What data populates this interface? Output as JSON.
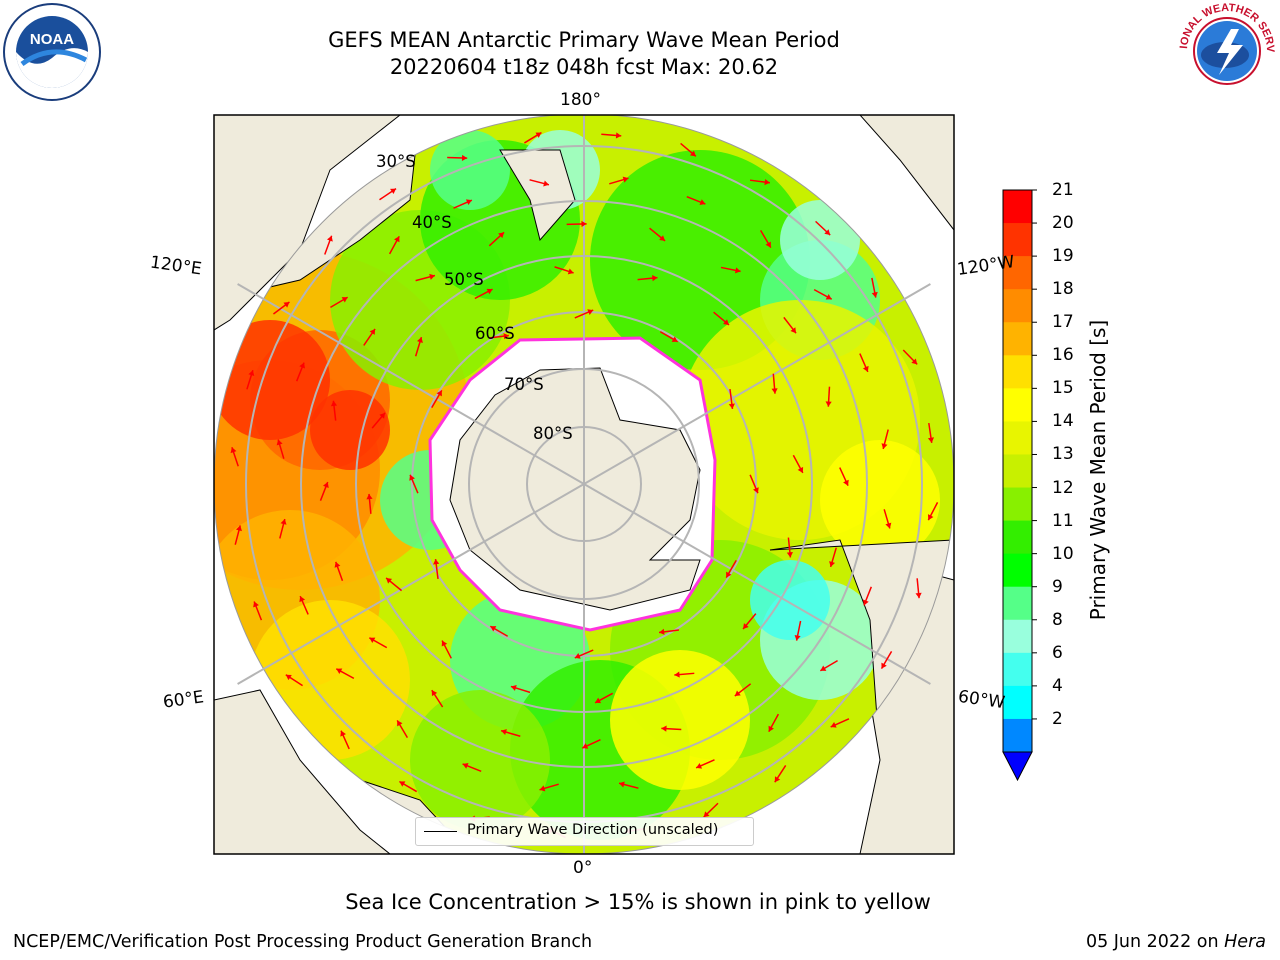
{
  "title": {
    "line1": "GEFS MEAN Antarctic Primary Wave Mean Period",
    "line2": "20220604 t18z 048h fcst   Max: 20.62"
  },
  "map": {
    "projection": "south-polar-stereographic",
    "lon_labels": {
      "top": "180°",
      "bottom": "0°",
      "upper_left": "120°E",
      "upper_right": "120°W",
      "lower_left": "60°E",
      "lower_right": "60°W"
    },
    "lat_labels": [
      "30°S",
      "40°S",
      "50°S",
      "60°S",
      "70°S",
      "80°S"
    ],
    "land_color": "#efebdc",
    "ice_edge_color": "#ff33dd",
    "arrow_color": "#ff0000"
  },
  "legend": {
    "label": "Primary Wave Direction (unscaled)"
  },
  "colorbar": {
    "label": "Primary Wave Mean Period [s]",
    "ticks": [
      "21",
      "20",
      "19",
      "18",
      "17",
      "16",
      "15",
      "14",
      "13",
      "12",
      "11",
      "10",
      "9",
      "8",
      "6",
      "4",
      "2"
    ],
    "colors": [
      "#ff0000",
      "#ff3300",
      "#ff6600",
      "#ff8c00",
      "#ffb300",
      "#ffe000",
      "#ffff00",
      "#e8f500",
      "#c8f000",
      "#88f000",
      "#33ee00",
      "#00ff00",
      "#55ff88",
      "#99ffdd",
      "#44ffee",
      "#00ffff",
      "#0088ff",
      "#0000ff"
    ]
  },
  "caption": "Sea Ice Concentration > 15% is shown in pink to yellow",
  "footer": {
    "left": "NCEP/EMC/Verification Post Processing Product Generation Branch",
    "right_date": "05 Jun 2022 on ",
    "right_host": "Hera"
  },
  "logos": {
    "left": "noaa-logo",
    "right": "national-weather-service-logo",
    "left_text": "NOAA",
    "right_text": "NATIONAL WEATHER SERVICE"
  }
}
